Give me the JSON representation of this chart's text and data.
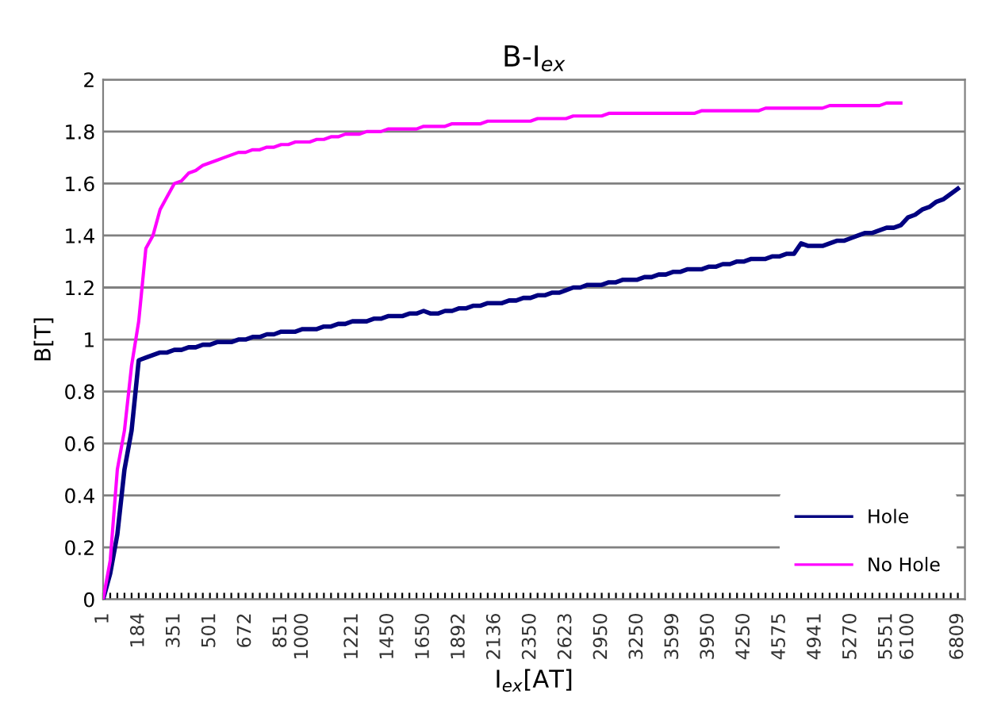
{
  "chart_data": {
    "type": "line",
    "title": "B-I$_{ex}$",
    "xlabel": "I$_{ex}$[AT]",
    "ylabel": "B[T]",
    "categories": [
      "1",
      null,
      null,
      null,
      null,
      "184",
      null,
      null,
      null,
      null,
      "351",
      null,
      null,
      null,
      null,
      "501",
      null,
      null,
      null,
      null,
      "672",
      null,
      null,
      null,
      null,
      "851",
      null,
      null,
      "1000",
      null,
      null,
      null,
      null,
      null,
      null,
      "1221",
      null,
      null,
      null,
      null,
      "1450",
      null,
      null,
      null,
      null,
      "1650",
      null,
      null,
      null,
      null,
      "1892",
      null,
      null,
      null,
      null,
      "2136",
      null,
      null,
      null,
      null,
      "2350",
      null,
      null,
      null,
      null,
      "2623",
      null,
      null,
      null,
      null,
      "2950",
      null,
      null,
      null,
      null,
      "3250",
      null,
      null,
      null,
      null,
      "3599",
      null,
      null,
      null,
      null,
      "3950",
      null,
      null,
      null,
      null,
      "4250",
      null,
      null,
      null,
      null,
      "4575",
      null,
      null,
      null,
      null,
      "4941",
      null,
      null,
      null,
      null,
      "5270",
      null,
      null,
      null,
      null,
      "5551",
      null,
      null,
      "6100",
      null,
      null,
      null,
      null,
      null,
      null,
      "6809"
    ],
    "series": [
      {
        "name": "Hole",
        "color": "#000080",
        "values": [
          0,
          0.1,
          0.25,
          0.5,
          0.65,
          0.92,
          0.93,
          0.94,
          0.95,
          0.95,
          0.96,
          0.96,
          0.97,
          0.97,
          0.98,
          0.98,
          0.99,
          0.99,
          0.99,
          1.0,
          1.0,
          1.01,
          1.01,
          1.02,
          1.02,
          1.03,
          1.03,
          1.03,
          1.04,
          1.04,
          1.04,
          1.05,
          1.05,
          1.06,
          1.06,
          1.07,
          1.07,
          1.07,
          1.08,
          1.08,
          1.09,
          1.09,
          1.09,
          1.1,
          1.1,
          1.11,
          1.1,
          1.1,
          1.11,
          1.11,
          1.12,
          1.12,
          1.13,
          1.13,
          1.14,
          1.14,
          1.14,
          1.15,
          1.15,
          1.16,
          1.16,
          1.17,
          1.17,
          1.18,
          1.18,
          1.19,
          1.2,
          1.2,
          1.21,
          1.21,
          1.21,
          1.22,
          1.22,
          1.23,
          1.23,
          1.23,
          1.24,
          1.24,
          1.25,
          1.25,
          1.26,
          1.26,
          1.27,
          1.27,
          1.27,
          1.28,
          1.28,
          1.29,
          1.29,
          1.3,
          1.3,
          1.31,
          1.31,
          1.31,
          1.32,
          1.32,
          1.33,
          1.33,
          1.37,
          1.36,
          1.36,
          1.36,
          1.37,
          1.38,
          1.38,
          1.39,
          1.4,
          1.41,
          1.41,
          1.42,
          1.43,
          1.43,
          1.44,
          1.47,
          1.48,
          1.5,
          1.51,
          1.53,
          1.54,
          1.56,
          1.58
        ]
      },
      {
        "name": "No Hole",
        "color": "#ff00ff",
        "values": [
          0,
          0.15,
          0.5,
          0.65,
          0.9,
          1.07,
          1.35,
          1.4,
          1.5,
          1.55,
          1.6,
          1.61,
          1.64,
          1.65,
          1.67,
          1.68,
          1.69,
          1.7,
          1.71,
          1.72,
          1.72,
          1.73,
          1.73,
          1.74,
          1.74,
          1.75,
          1.75,
          1.76,
          1.76,
          1.76,
          1.77,
          1.77,
          1.78,
          1.78,
          1.79,
          1.79,
          1.79,
          1.8,
          1.8,
          1.8,
          1.81,
          1.81,
          1.81,
          1.81,
          1.81,
          1.82,
          1.82,
          1.82,
          1.82,
          1.83,
          1.83,
          1.83,
          1.83,
          1.83,
          1.84,
          1.84,
          1.84,
          1.84,
          1.84,
          1.84,
          1.84,
          1.85,
          1.85,
          1.85,
          1.85,
          1.85,
          1.86,
          1.86,
          1.86,
          1.86,
          1.86,
          1.87,
          1.87,
          1.87,
          1.87,
          1.87,
          1.87,
          1.87,
          1.87,
          1.87,
          1.87,
          1.87,
          1.87,
          1.87,
          1.88,
          1.88,
          1.88,
          1.88,
          1.88,
          1.88,
          1.88,
          1.88,
          1.88,
          1.89,
          1.89,
          1.89,
          1.89,
          1.89,
          1.89,
          1.89,
          1.89,
          1.89,
          1.9,
          1.9,
          1.9,
          1.9,
          1.9,
          1.9,
          1.9,
          1.9,
          1.91,
          1.91,
          1.91,
          null,
          null,
          null,
          null,
          null,
          null,
          null,
          null
        ]
      }
    ],
    "ylim": [
      0,
      2
    ],
    "yticks": [
      0,
      0.2,
      0.4,
      0.6,
      0.8,
      1,
      1.2,
      1.4,
      1.6,
      1.8,
      2
    ],
    "grid": "y",
    "legend": "bottom right"
  }
}
